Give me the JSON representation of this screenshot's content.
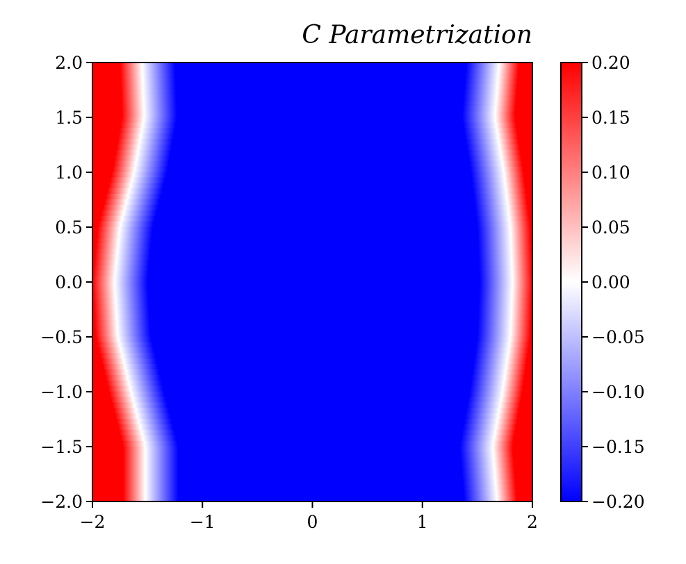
{
  "chart_data": {
    "type": "heatmap",
    "title": "C  Parametrization",
    "xlabel": "",
    "ylabel": "",
    "xlim": [
      -2,
      2
    ],
    "ylim": [
      -2,
      2
    ],
    "x_ticks": [
      -2,
      -1,
      0,
      1,
      2
    ],
    "x_tick_labels": [
      "−2",
      "−1",
      "0",
      "1",
      "2"
    ],
    "y_ticks": [
      2.0,
      1.5,
      1.0,
      0.5,
      0.0,
      -0.5,
      -1.0,
      -1.5,
      -2.0
    ],
    "y_tick_labels": [
      "2.0",
      "1.5",
      "1.0",
      "0.5",
      "0.0",
      "−0.5",
      "−1.0",
      "−1.5",
      "−2.0"
    ],
    "colorbar": {
      "colormap": "bwr",
      "vmin": -0.2,
      "vmax": 0.2,
      "ticks": [
        0.2,
        0.15,
        0.1,
        0.05,
        0.0,
        -0.05,
        -0.1,
        -0.15,
        -0.2
      ],
      "tick_labels": [
        "0.20",
        "0.15",
        "0.10",
        "0.05",
        "0.00",
        "−0.05",
        "−0.10",
        "−0.15",
        "−0.20"
      ]
    },
    "zero_contours": {
      "y": [
        -2.0,
        -1.5,
        -1.0,
        -0.5,
        0.0,
        0.5,
        1.0,
        1.5,
        2.0
      ],
      "left_x": [
        -1.52,
        -1.52,
        -1.65,
        -1.77,
        -1.8,
        -1.75,
        -1.62,
        -1.53,
        -1.55
      ],
      "right_x": [
        1.68,
        1.64,
        1.73,
        1.8,
        1.82,
        1.8,
        1.74,
        1.66,
        1.7
      ]
    },
    "colors": {
      "low": "#0000ff",
      "mid": "#ffffff",
      "high": "#ff0000"
    }
  }
}
